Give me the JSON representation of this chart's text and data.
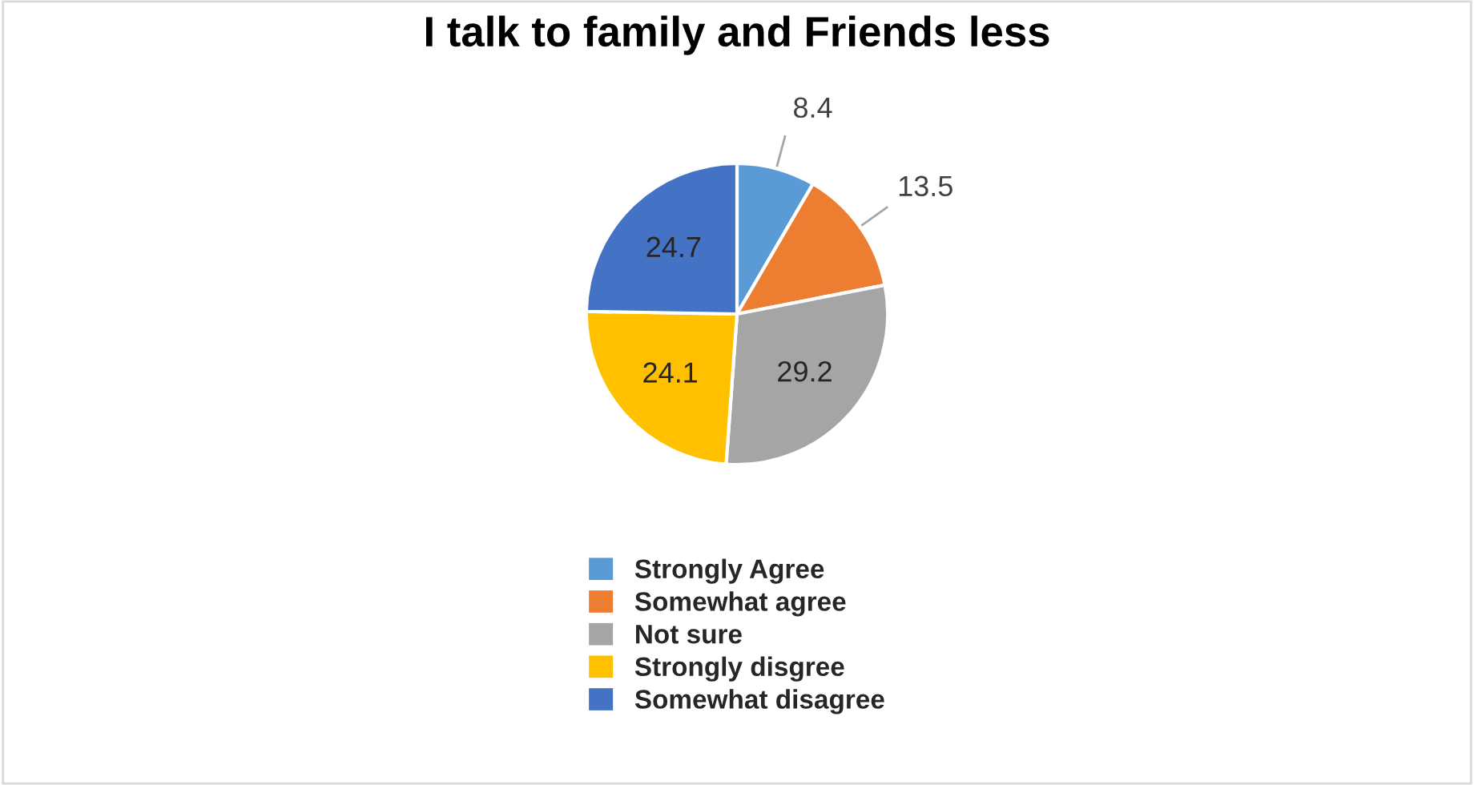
{
  "chart_data": {
    "type": "pie",
    "title": "I talk to family and Friends less",
    "categories": [
      "Strongly Agree",
      "Somewhat agree",
      "Not sure",
      "Strongly disgree",
      "Somewhat disagree"
    ],
    "values": [
      8.4,
      13.5,
      29.2,
      24.1,
      24.7
    ],
    "colors": [
      "#5b9bd5",
      "#ed7d31",
      "#a5a5a5",
      "#ffc000",
      "#4472c4"
    ],
    "data_labels": true,
    "legend": "bottom"
  }
}
